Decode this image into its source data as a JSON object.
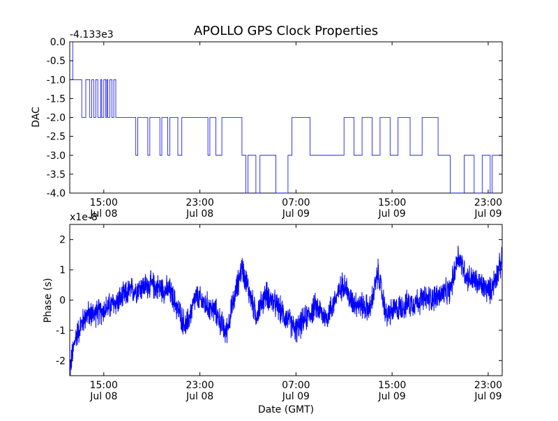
{
  "title": "APOLLO GPS Clock Properties",
  "chart_data": [
    {
      "type": "line",
      "ylabel": "DAC",
      "offset_text": "-4.133e3",
      "x_range": [
        0,
        21.6
      ],
      "ylim": [
        -4.0,
        0.0
      ],
      "y_ticks": [
        0.0,
        -0.5,
        -1.0,
        -1.5,
        -2.0,
        -2.5,
        -3.0,
        -3.5,
        -4.0
      ],
      "y_tick_labels": [
        "0.0",
        "-0.5",
        "-1.0",
        "-1.5",
        "-2.0",
        "-2.5",
        "-3.0",
        "-3.5",
        "-4.0"
      ],
      "x_ticks": [
        1.7,
        6.5,
        11.3,
        16.1,
        20.9
      ],
      "x_tick_labels": [
        [
          "15:00",
          "Jul 08"
        ],
        [
          "23:00",
          "Jul 08"
        ],
        [
          "07:00",
          "Jul 09"
        ],
        [
          "15:00",
          "Jul 09"
        ],
        [
          "23:00",
          "Jul 09"
        ]
      ],
      "line_color": "#0000ff",
      "segments": [
        [
          0.0,
          0.0,
          0.15
        ],
        [
          0.15,
          -1.0,
          0.6
        ],
        [
          0.6,
          -2.0,
          0.8
        ],
        [
          0.8,
          -1.0,
          1.0
        ],
        [
          1.0,
          -2.0,
          1.1
        ],
        [
          1.1,
          -1.0,
          1.2
        ],
        [
          1.2,
          -2.0,
          1.3
        ],
        [
          1.3,
          -1.0,
          1.4
        ],
        [
          1.4,
          -2.0,
          1.55
        ],
        [
          1.55,
          -1.0,
          1.6
        ],
        [
          1.6,
          -2.0,
          1.7
        ],
        [
          1.7,
          -1.0,
          1.8
        ],
        [
          1.8,
          -2.0,
          1.85
        ],
        [
          1.85,
          -1.0,
          1.9
        ],
        [
          1.9,
          -2.0,
          2.0
        ],
        [
          2.0,
          -1.0,
          2.1
        ],
        [
          2.1,
          -2.0,
          2.2
        ],
        [
          2.2,
          -1.0,
          2.3
        ],
        [
          2.3,
          -2.0,
          3.3
        ],
        [
          3.3,
          -3.0,
          3.4
        ],
        [
          3.4,
          -2.0,
          3.9
        ],
        [
          3.9,
          -3.0,
          4.0
        ],
        [
          4.0,
          -2.0,
          4.5
        ],
        [
          4.5,
          -3.0,
          4.6
        ],
        [
          4.6,
          -2.0,
          4.9
        ],
        [
          4.9,
          -3.0,
          5.0
        ],
        [
          5.0,
          -2.0,
          5.4
        ],
        [
          5.4,
          -3.0,
          5.6
        ],
        [
          5.6,
          -2.0,
          6.9
        ],
        [
          6.9,
          -3.0,
          7.0
        ],
        [
          7.0,
          -2.0,
          7.3
        ],
        [
          7.3,
          -3.0,
          7.6
        ],
        [
          7.6,
          -2.0,
          8.6
        ],
        [
          8.6,
          -3.0,
          8.8
        ],
        [
          8.8,
          -4.0,
          8.9
        ],
        [
          8.9,
          -3.0,
          9.3
        ],
        [
          9.3,
          -4.0,
          9.5
        ],
        [
          9.5,
          -3.0,
          10.3
        ],
        [
          10.3,
          -4.0,
          10.9
        ],
        [
          10.9,
          -3.0,
          11.1
        ],
        [
          11.1,
          -2.0,
          12.0
        ],
        [
          12.0,
          -3.0,
          13.7
        ],
        [
          13.7,
          -2.0,
          14.2
        ],
        [
          14.2,
          -3.0,
          14.6
        ],
        [
          14.6,
          -2.0,
          15.1
        ],
        [
          15.1,
          -3.0,
          15.5
        ],
        [
          15.5,
          -2.0,
          16.0
        ],
        [
          16.0,
          -3.0,
          16.4
        ],
        [
          16.4,
          -2.0,
          17.0
        ],
        [
          17.0,
          -3.0,
          17.6
        ],
        [
          17.6,
          -2.0,
          18.4
        ],
        [
          18.4,
          -3.0,
          19.0
        ],
        [
          19.0,
          -4.0,
          19.7
        ],
        [
          19.7,
          -3.0,
          20.2
        ],
        [
          20.2,
          -4.0,
          20.6
        ],
        [
          20.6,
          -3.0,
          21.0
        ],
        [
          21.0,
          -4.0,
          21.1
        ],
        [
          21.1,
          -3.0,
          21.6
        ]
      ]
    },
    {
      "type": "line",
      "ylabel": "Phase (s)",
      "xlabel": "Date (GMT)",
      "offset_text": "x1e-8",
      "x_range": [
        0,
        21.6
      ],
      "ylim": [
        -2.5,
        2.5
      ],
      "y_ticks": [
        2,
        1,
        0,
        -1,
        -2
      ],
      "y_tick_labels": [
        "2",
        "1",
        "0",
        "-1",
        "-2"
      ],
      "x_ticks": [
        1.7,
        6.5,
        11.3,
        16.1,
        20.9
      ],
      "x_tick_labels": [
        [
          "15:00",
          "Jul 08"
        ],
        [
          "23:00",
          "Jul 08"
        ],
        [
          "07:00",
          "Jul 09"
        ],
        [
          "15:00",
          "Jul 09"
        ],
        [
          "23:00",
          "Jul 09"
        ]
      ],
      "line_color": "#0000ff",
      "trend": [
        [
          0.0,
          -2.3
        ],
        [
          0.3,
          -1.2
        ],
        [
          0.8,
          -0.5
        ],
        [
          1.5,
          -0.4
        ],
        [
          2.5,
          0.0
        ],
        [
          3.0,
          0.3
        ],
        [
          4.0,
          0.5
        ],
        [
          5.0,
          0.3
        ],
        [
          5.8,
          -0.9
        ],
        [
          6.3,
          0.1
        ],
        [
          7.3,
          -0.4
        ],
        [
          7.8,
          -1.1
        ],
        [
          8.6,
          1.1
        ],
        [
          9.3,
          -0.5
        ],
        [
          9.8,
          0.2
        ],
        [
          10.6,
          -0.4
        ],
        [
          11.3,
          -1.0
        ],
        [
          12.3,
          -0.2
        ],
        [
          12.8,
          -0.6
        ],
        [
          13.7,
          0.6
        ],
        [
          14.0,
          0.0
        ],
        [
          15.0,
          -0.3
        ],
        [
          15.4,
          0.9
        ],
        [
          15.8,
          -0.5
        ],
        [
          16.6,
          -0.2
        ],
        [
          17.5,
          0.0
        ],
        [
          18.3,
          0.1
        ],
        [
          19.0,
          0.3
        ],
        [
          19.4,
          1.5
        ],
        [
          19.8,
          0.8
        ],
        [
          20.5,
          0.5
        ],
        [
          21.0,
          0.3
        ],
        [
          21.6,
          1.3
        ]
      ],
      "noise_amplitude": 0.45
    }
  ]
}
